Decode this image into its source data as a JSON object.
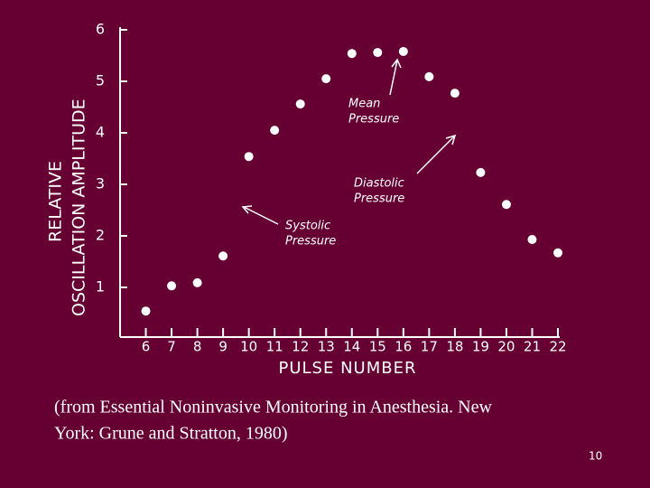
{
  "chart_data": {
    "type": "scatter",
    "x_label": "PULSE NUMBER",
    "y_label": [
      "RELATIVE",
      "OSCILLATION AMPLITUDE"
    ],
    "x": [
      6,
      7,
      8,
      9,
      10,
      11,
      12,
      13,
      14,
      15,
      16,
      17,
      18,
      19,
      20,
      21,
      22
    ],
    "values": [
      0.54,
      1.03,
      1.09,
      1.61,
      3.54,
      4.05,
      4.56,
      5.05,
      5.54,
      5.56,
      5.58,
      5.09,
      4.77,
      3.23,
      2.61,
      1.93,
      1.67
    ],
    "color": "#ffffff",
    "xlim": [
      5,
      22
    ],
    "xticks": [
      6,
      7,
      8,
      9,
      10,
      11,
      12,
      13,
      14,
      15,
      16,
      17,
      18,
      19,
      20,
      21,
      22
    ],
    "ylim": [
      0,
      6
    ],
    "yticks": [
      1,
      2,
      3,
      4,
      5,
      6
    ],
    "annotations": [
      {
        "lines": [
          "Mean",
          "Pressure"
        ]
      },
      {
        "lines": [
          "Diastolic",
          "Pressure"
        ]
      },
      {
        "lines": [
          "Systolic",
          "Pressure"
        ]
      }
    ]
  },
  "caption": [
    "(from Essential Noninvasive Monitoring in Anesthesia. New",
    "York: Grune and Stratton, 1980)"
  ],
  "slide_number": "10"
}
